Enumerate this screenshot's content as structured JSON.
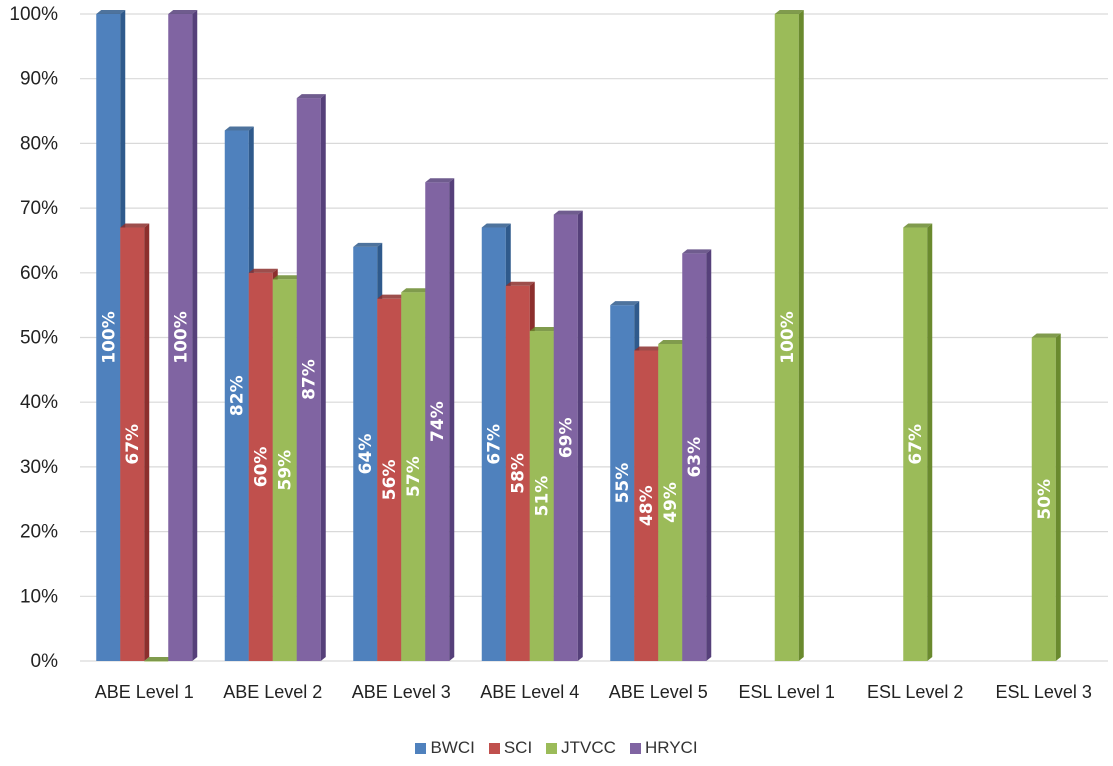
{
  "chart_data": {
    "type": "bar",
    "categories": [
      "ABE Level 1",
      "ABE Level 2",
      "ABE Level 3",
      "ABE Level 4",
      "ABE Level 5",
      "ESL Level 1",
      "ESL Level 2",
      "ESL Level 3"
    ],
    "series": [
      {
        "name": "BWCI",
        "color": "#4f81bd",
        "side_color": "#2f5a8c",
        "values": [
          100,
          82,
          64,
          67,
          55,
          null,
          null,
          null
        ],
        "labels": [
          "100%",
          "82%",
          "64%",
          "67%",
          "55%",
          "",
          "",
          ""
        ]
      },
      {
        "name": "SCI",
        "color": "#c0504d",
        "side_color": "#8c2f2d",
        "values": [
          67,
          60,
          56,
          58,
          48,
          null,
          null,
          null
        ],
        "labels": [
          "67%",
          "60%",
          "56%",
          "58%",
          "48%",
          "",
          "",
          ""
        ]
      },
      {
        "name": "JTVCC",
        "color": "#9bbb59",
        "side_color": "#6a8a2e",
        "values": [
          0,
          59,
          57,
          51,
          49,
          100,
          67,
          50
        ],
        "labels": [
          "",
          "59%",
          "57%",
          "51%",
          "49%",
          "100%",
          "67%",
          "50%"
        ]
      },
      {
        "name": "HRYCI",
        "color": "#8064a2",
        "side_color": "#56407a",
        "values": [
          100,
          87,
          74,
          69,
          63,
          null,
          null,
          null
        ],
        "labels": [
          "100%",
          "87%",
          "74%",
          "69%",
          "63%",
          "",
          "",
          ""
        ]
      }
    ],
    "y_ticks": [
      "0%",
      "10%",
      "20%",
      "30%",
      "40%",
      "50%",
      "60%",
      "70%",
      "80%",
      "90%",
      "100%"
    ],
    "ylim": [
      0,
      100
    ],
    "grid": true,
    "legend_position": "bottom",
    "title": "",
    "xlabel": "",
    "ylabel": ""
  }
}
